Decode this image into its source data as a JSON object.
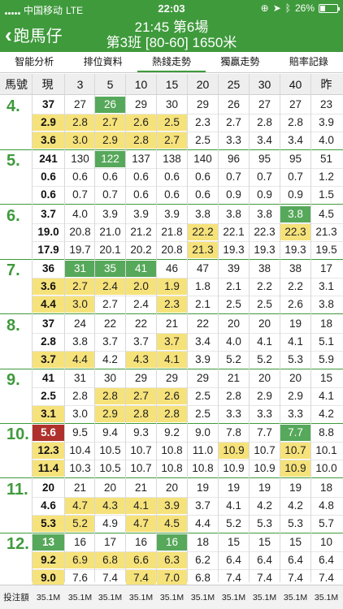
{
  "status": {
    "carrier": "中国移动",
    "network": "LTE",
    "time": "22:03",
    "battery": "26%",
    "battery_level": 0.26
  },
  "nav": {
    "back_label": "跑馬仔",
    "title_line1": "21:45 第6場",
    "title_line2": "第3班 [80-60] 1650米"
  },
  "tabs": [
    {
      "label": "智能分析",
      "active": false
    },
    {
      "label": "排位資料",
      "active": false
    },
    {
      "label": "熱錢走勢",
      "active": true
    },
    {
      "label": "獨贏走勢",
      "active": false
    },
    {
      "label": "賠率記錄",
      "active": false
    }
  ],
  "header": {
    "horse": "馬號",
    "current": "現",
    "cols": [
      "3",
      "5",
      "10",
      "15",
      "20",
      "25",
      "30",
      "40",
      "昨"
    ]
  },
  "horses": [
    {
      "num": "4.",
      "rows": [
        [
          [
            "37",
            ""
          ],
          [
            "27",
            ""
          ],
          [
            "26",
            "g"
          ],
          [
            "29",
            ""
          ],
          [
            "30",
            ""
          ],
          [
            "29",
            ""
          ],
          [
            "26",
            ""
          ],
          [
            "27",
            ""
          ],
          [
            "27",
            ""
          ],
          [
            "23",
            ""
          ]
        ],
        [
          [
            "2.9",
            "y"
          ],
          [
            "2.8",
            "y"
          ],
          [
            "2.7",
            "y"
          ],
          [
            "2.6",
            "y"
          ],
          [
            "2.5",
            "y"
          ],
          [
            "2.3",
            ""
          ],
          [
            "2.7",
            ""
          ],
          [
            "2.8",
            ""
          ],
          [
            "2.8",
            ""
          ],
          [
            "3.9",
            ""
          ]
        ],
        [
          [
            "3.6",
            "y"
          ],
          [
            "3.0",
            "y"
          ],
          [
            "2.9",
            "y"
          ],
          [
            "2.8",
            "y"
          ],
          [
            "2.7",
            "y"
          ],
          [
            "2.5",
            ""
          ],
          [
            "3.3",
            ""
          ],
          [
            "3.4",
            ""
          ],
          [
            "3.4",
            ""
          ],
          [
            "4.0",
            ""
          ]
        ]
      ]
    },
    {
      "num": "5.",
      "rows": [
        [
          [
            "241",
            ""
          ],
          [
            "130",
            ""
          ],
          [
            "122",
            "g"
          ],
          [
            "137",
            ""
          ],
          [
            "138",
            ""
          ],
          [
            "140",
            ""
          ],
          [
            "96",
            ""
          ],
          [
            "95",
            ""
          ],
          [
            "95",
            ""
          ],
          [
            "51",
            ""
          ]
        ],
        [
          [
            "0.6",
            ""
          ],
          [
            "0.6",
            ""
          ],
          [
            "0.6",
            ""
          ],
          [
            "0.6",
            ""
          ],
          [
            "0.6",
            ""
          ],
          [
            "0.6",
            ""
          ],
          [
            "0.7",
            ""
          ],
          [
            "0.7",
            ""
          ],
          [
            "0.7",
            ""
          ],
          [
            "1.2",
            ""
          ]
        ],
        [
          [
            "0.6",
            ""
          ],
          [
            "0.7",
            ""
          ],
          [
            "0.7",
            ""
          ],
          [
            "0.6",
            ""
          ],
          [
            "0.6",
            ""
          ],
          [
            "0.6",
            ""
          ],
          [
            "0.9",
            ""
          ],
          [
            "0.9",
            ""
          ],
          [
            "0.9",
            ""
          ],
          [
            "1.5",
            ""
          ]
        ]
      ]
    },
    {
      "num": "6.",
      "rows": [
        [
          [
            "3.7",
            ""
          ],
          [
            "4.0",
            ""
          ],
          [
            "3.9",
            ""
          ],
          [
            "3.9",
            ""
          ],
          [
            "3.9",
            ""
          ],
          [
            "3.8",
            ""
          ],
          [
            "3.8",
            ""
          ],
          [
            "3.8",
            ""
          ],
          [
            "3.8",
            "g"
          ],
          [
            "4.5",
            ""
          ]
        ],
        [
          [
            "19.0",
            ""
          ],
          [
            "20.8",
            ""
          ],
          [
            "21.0",
            ""
          ],
          [
            "21.2",
            ""
          ],
          [
            "21.8",
            ""
          ],
          [
            "22.2",
            "y"
          ],
          [
            "22.1",
            ""
          ],
          [
            "22.3",
            ""
          ],
          [
            "22.3",
            "y"
          ],
          [
            "21.3",
            ""
          ]
        ],
        [
          [
            "17.9",
            ""
          ],
          [
            "19.7",
            ""
          ],
          [
            "20.1",
            ""
          ],
          [
            "20.2",
            ""
          ],
          [
            "20.8",
            ""
          ],
          [
            "21.3",
            "y"
          ],
          [
            "19.3",
            ""
          ],
          [
            "19.3",
            ""
          ],
          [
            "19.3",
            ""
          ],
          [
            "19.5",
            ""
          ]
        ]
      ]
    },
    {
      "num": "7.",
      "rows": [
        [
          [
            "36",
            ""
          ],
          [
            "31",
            "g"
          ],
          [
            "35",
            "g"
          ],
          [
            "41",
            "g"
          ],
          [
            "46",
            ""
          ],
          [
            "47",
            ""
          ],
          [
            "39",
            ""
          ],
          [
            "38",
            ""
          ],
          [
            "38",
            ""
          ],
          [
            "17",
            ""
          ]
        ],
        [
          [
            "3.6",
            "y"
          ],
          [
            "2.7",
            "y"
          ],
          [
            "2.4",
            "y"
          ],
          [
            "2.0",
            "y"
          ],
          [
            "1.9",
            "y"
          ],
          [
            "1.8",
            ""
          ],
          [
            "2.1",
            ""
          ],
          [
            "2.2",
            ""
          ],
          [
            "2.2",
            ""
          ],
          [
            "3.1",
            ""
          ]
        ],
        [
          [
            "4.4",
            "y"
          ],
          [
            "3.0",
            "y"
          ],
          [
            "2.7",
            ""
          ],
          [
            "2.4",
            ""
          ],
          [
            "2.3",
            "y"
          ],
          [
            "2.1",
            ""
          ],
          [
            "2.5",
            ""
          ],
          [
            "2.5",
            ""
          ],
          [
            "2.6",
            ""
          ],
          [
            "3.8",
            ""
          ]
        ]
      ]
    },
    {
      "num": "8.",
      "rows": [
        [
          [
            "37",
            ""
          ],
          [
            "24",
            ""
          ],
          [
            "22",
            ""
          ],
          [
            "22",
            ""
          ],
          [
            "21",
            ""
          ],
          [
            "22",
            ""
          ],
          [
            "20",
            ""
          ],
          [
            "20",
            ""
          ],
          [
            "19",
            ""
          ],
          [
            "18",
            ""
          ]
        ],
        [
          [
            "2.8",
            ""
          ],
          [
            "3.8",
            ""
          ],
          [
            "3.7",
            ""
          ],
          [
            "3.7",
            ""
          ],
          [
            "3.7",
            "y"
          ],
          [
            "3.4",
            ""
          ],
          [
            "4.0",
            ""
          ],
          [
            "4.1",
            ""
          ],
          [
            "4.1",
            ""
          ],
          [
            "5.1",
            ""
          ]
        ],
        [
          [
            "3.7",
            "y"
          ],
          [
            "4.4",
            "y"
          ],
          [
            "4.2",
            ""
          ],
          [
            "4.3",
            "y"
          ],
          [
            "4.1",
            "y"
          ],
          [
            "3.9",
            ""
          ],
          [
            "5.2",
            ""
          ],
          [
            "5.2",
            ""
          ],
          [
            "5.3",
            ""
          ],
          [
            "5.9",
            ""
          ]
        ]
      ]
    },
    {
      "num": "9.",
      "rows": [
        [
          [
            "41",
            ""
          ],
          [
            "31",
            ""
          ],
          [
            "30",
            ""
          ],
          [
            "29",
            ""
          ],
          [
            "29",
            ""
          ],
          [
            "29",
            ""
          ],
          [
            "21",
            ""
          ],
          [
            "20",
            ""
          ],
          [
            "20",
            ""
          ],
          [
            "15",
            ""
          ]
        ],
        [
          [
            "2.5",
            ""
          ],
          [
            "2.8",
            ""
          ],
          [
            "2.8",
            "y"
          ],
          [
            "2.7",
            "y"
          ],
          [
            "2.6",
            "y"
          ],
          [
            "2.5",
            ""
          ],
          [
            "2.8",
            ""
          ],
          [
            "2.9",
            ""
          ],
          [
            "2.9",
            ""
          ],
          [
            "4.1",
            ""
          ]
        ],
        [
          [
            "3.1",
            "y"
          ],
          [
            "3.0",
            ""
          ],
          [
            "2.9",
            "y"
          ],
          [
            "2.8",
            "y"
          ],
          [
            "2.8",
            "y"
          ],
          [
            "2.5",
            ""
          ],
          [
            "3.3",
            ""
          ],
          [
            "3.3",
            ""
          ],
          [
            "3.3",
            ""
          ],
          [
            "4.2",
            ""
          ]
        ]
      ]
    },
    {
      "num": "10.",
      "rows": [
        [
          [
            "5.6",
            "r"
          ],
          [
            "9.5",
            ""
          ],
          [
            "9.4",
            ""
          ],
          [
            "9.3",
            ""
          ],
          [
            "9.2",
            ""
          ],
          [
            "9.0",
            ""
          ],
          [
            "7.8",
            ""
          ],
          [
            "7.7",
            ""
          ],
          [
            "7.7",
            "g"
          ],
          [
            "8.8",
            ""
          ]
        ],
        [
          [
            "12.3",
            "y"
          ],
          [
            "10.4",
            ""
          ],
          [
            "10.5",
            ""
          ],
          [
            "10.7",
            ""
          ],
          [
            "10.8",
            ""
          ],
          [
            "11.0",
            ""
          ],
          [
            "10.9",
            "y"
          ],
          [
            "10.7",
            ""
          ],
          [
            "10.7",
            "y"
          ],
          [
            "10.1",
            ""
          ]
        ],
        [
          [
            "11.4",
            "y"
          ],
          [
            "10.3",
            ""
          ],
          [
            "10.5",
            ""
          ],
          [
            "10.7",
            ""
          ],
          [
            "10.8",
            ""
          ],
          [
            "10.8",
            ""
          ],
          [
            "10.9",
            ""
          ],
          [
            "10.9",
            ""
          ],
          [
            "10.9",
            "y"
          ],
          [
            "10.0",
            ""
          ]
        ]
      ]
    },
    {
      "num": "11.",
      "rows": [
        [
          [
            "20",
            ""
          ],
          [
            "21",
            ""
          ],
          [
            "20",
            ""
          ],
          [
            "21",
            ""
          ],
          [
            "20",
            ""
          ],
          [
            "19",
            ""
          ],
          [
            "19",
            ""
          ],
          [
            "19",
            ""
          ],
          [
            "19",
            ""
          ],
          [
            "18",
            ""
          ]
        ],
        [
          [
            "4.6",
            ""
          ],
          [
            "4.7",
            "y"
          ],
          [
            "4.3",
            "y"
          ],
          [
            "4.1",
            "y"
          ],
          [
            "3.9",
            "y"
          ],
          [
            "3.7",
            ""
          ],
          [
            "4.1",
            ""
          ],
          [
            "4.2",
            ""
          ],
          [
            "4.2",
            ""
          ],
          [
            "4.8",
            ""
          ]
        ],
        [
          [
            "5.3",
            "y"
          ],
          [
            "5.2",
            "y"
          ],
          [
            "4.9",
            ""
          ],
          [
            "4.7",
            "y"
          ],
          [
            "4.5",
            "y"
          ],
          [
            "4.4",
            ""
          ],
          [
            "5.2",
            ""
          ],
          [
            "5.3",
            ""
          ],
          [
            "5.3",
            ""
          ],
          [
            "5.7",
            ""
          ]
        ]
      ]
    },
    {
      "num": "12.",
      "rows": [
        [
          [
            "13",
            "g"
          ],
          [
            "16",
            ""
          ],
          [
            "17",
            ""
          ],
          [
            "16",
            ""
          ],
          [
            "16",
            "g"
          ],
          [
            "18",
            ""
          ],
          [
            "15",
            ""
          ],
          [
            "15",
            ""
          ],
          [
            "15",
            ""
          ],
          [
            "10",
            ""
          ]
        ],
        [
          [
            "9.2",
            "y"
          ],
          [
            "6.9",
            "y"
          ],
          [
            "6.8",
            "y"
          ],
          [
            "6.6",
            "y"
          ],
          [
            "6.3",
            "y"
          ],
          [
            "6.2",
            ""
          ],
          [
            "6.4",
            ""
          ],
          [
            "6.4",
            ""
          ],
          [
            "6.4",
            ""
          ],
          [
            "6.4",
            ""
          ]
        ],
        [
          [
            "9.0",
            "y"
          ],
          [
            "7.6",
            ""
          ],
          [
            "7.4",
            ""
          ],
          [
            "7.4",
            "y"
          ],
          [
            "7.0",
            "y"
          ],
          [
            "6.8",
            ""
          ],
          [
            "7.4",
            ""
          ],
          [
            "7.4",
            ""
          ],
          [
            "7.4",
            ""
          ],
          [
            "7.4",
            ""
          ]
        ]
      ]
    }
  ],
  "footer": {
    "label": "投注額",
    "values": [
      "35.1M",
      "35.1M",
      "35.1M",
      "35.1M",
      "35.1M",
      "35.1M",
      "35.1M",
      "35.1M",
      "35.1M",
      "35.1M"
    ]
  }
}
